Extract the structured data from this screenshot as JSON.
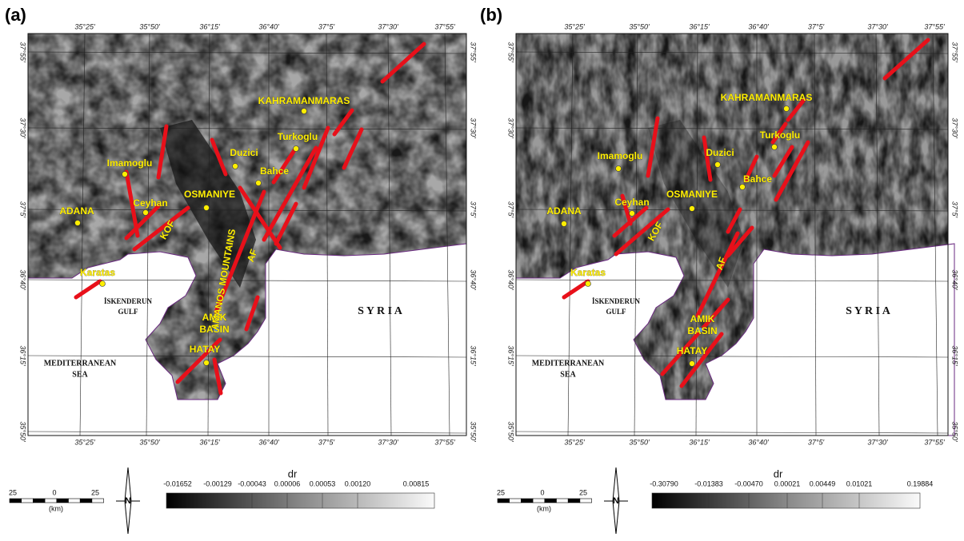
{
  "panels": [
    {
      "label": "(a)",
      "lon_ticks": [
        "35°25′",
        "35°50′",
        "36°15′",
        "36°40′",
        "37°5′",
        "37°30′",
        "37°55′"
      ],
      "lat_ticks": [
        "37°55′",
        "37°30′",
        "37°5′",
        "36°40′",
        "36°15′",
        "35°50′"
      ],
      "places": [
        "KAHRAMANMARAS",
        "Turkoglu",
        "Duzici",
        "Imamoglu",
        "Bahce",
        "OSMANIYE",
        "Ceyhan",
        "ADANA",
        "Karatas",
        "AMIK",
        "BASIN",
        "HATAY"
      ],
      "regions": [
        "S Y R I A",
        "MEDITERRANEAN",
        "SEA",
        "İSKENDERUN",
        "GULF",
        "AMANOS   MOUNTAINS",
        "KOF",
        "AF"
      ],
      "colorbar": {
        "title": "dr",
        "ticks": [
          "-0.01652",
          "-0.00129",
          "-0.00043",
          "0.00006",
          "0.00053",
          "0.00120",
          "0.00815"
        ]
      },
      "scale": {
        "labels": [
          "25",
          "0",
          "25"
        ],
        "unit": "(km)"
      },
      "north": "N"
    },
    {
      "label": "(b)",
      "lon_ticks": [
        "35°25′",
        "35°50′",
        "36°15′",
        "36°40′",
        "37°5′",
        "37°30′",
        "37°55′"
      ],
      "lat_ticks": [
        "37°55′",
        "37°30′",
        "37°5′",
        "36°40′",
        "36°15′",
        "35°50′"
      ],
      "places": [
        "KAHRAMANMARAS",
        "Turkoglu",
        "Duzici",
        "Imamoglu",
        "Bahce",
        "OSMANIYE",
        "Ceyhan",
        "ADANA",
        "Karatas",
        "AMIK",
        "BASIN",
        "HATAY"
      ],
      "regions": [
        "S Y R I A",
        "MEDITERRANEAN",
        "SEA",
        "İSKENDERUN",
        "GULF",
        "KOF",
        "AF"
      ],
      "colorbar": {
        "title": "dr",
        "ticks": [
          "-0.30790",
          "-0.01383",
          "-0.00470",
          "0.00021",
          "0.00449",
          "0.01021",
          "0.19884"
        ]
      },
      "scale": {
        "labels": [
          "25",
          "0",
          "25"
        ],
        "unit": "(km)"
      },
      "north": "N"
    }
  ]
}
